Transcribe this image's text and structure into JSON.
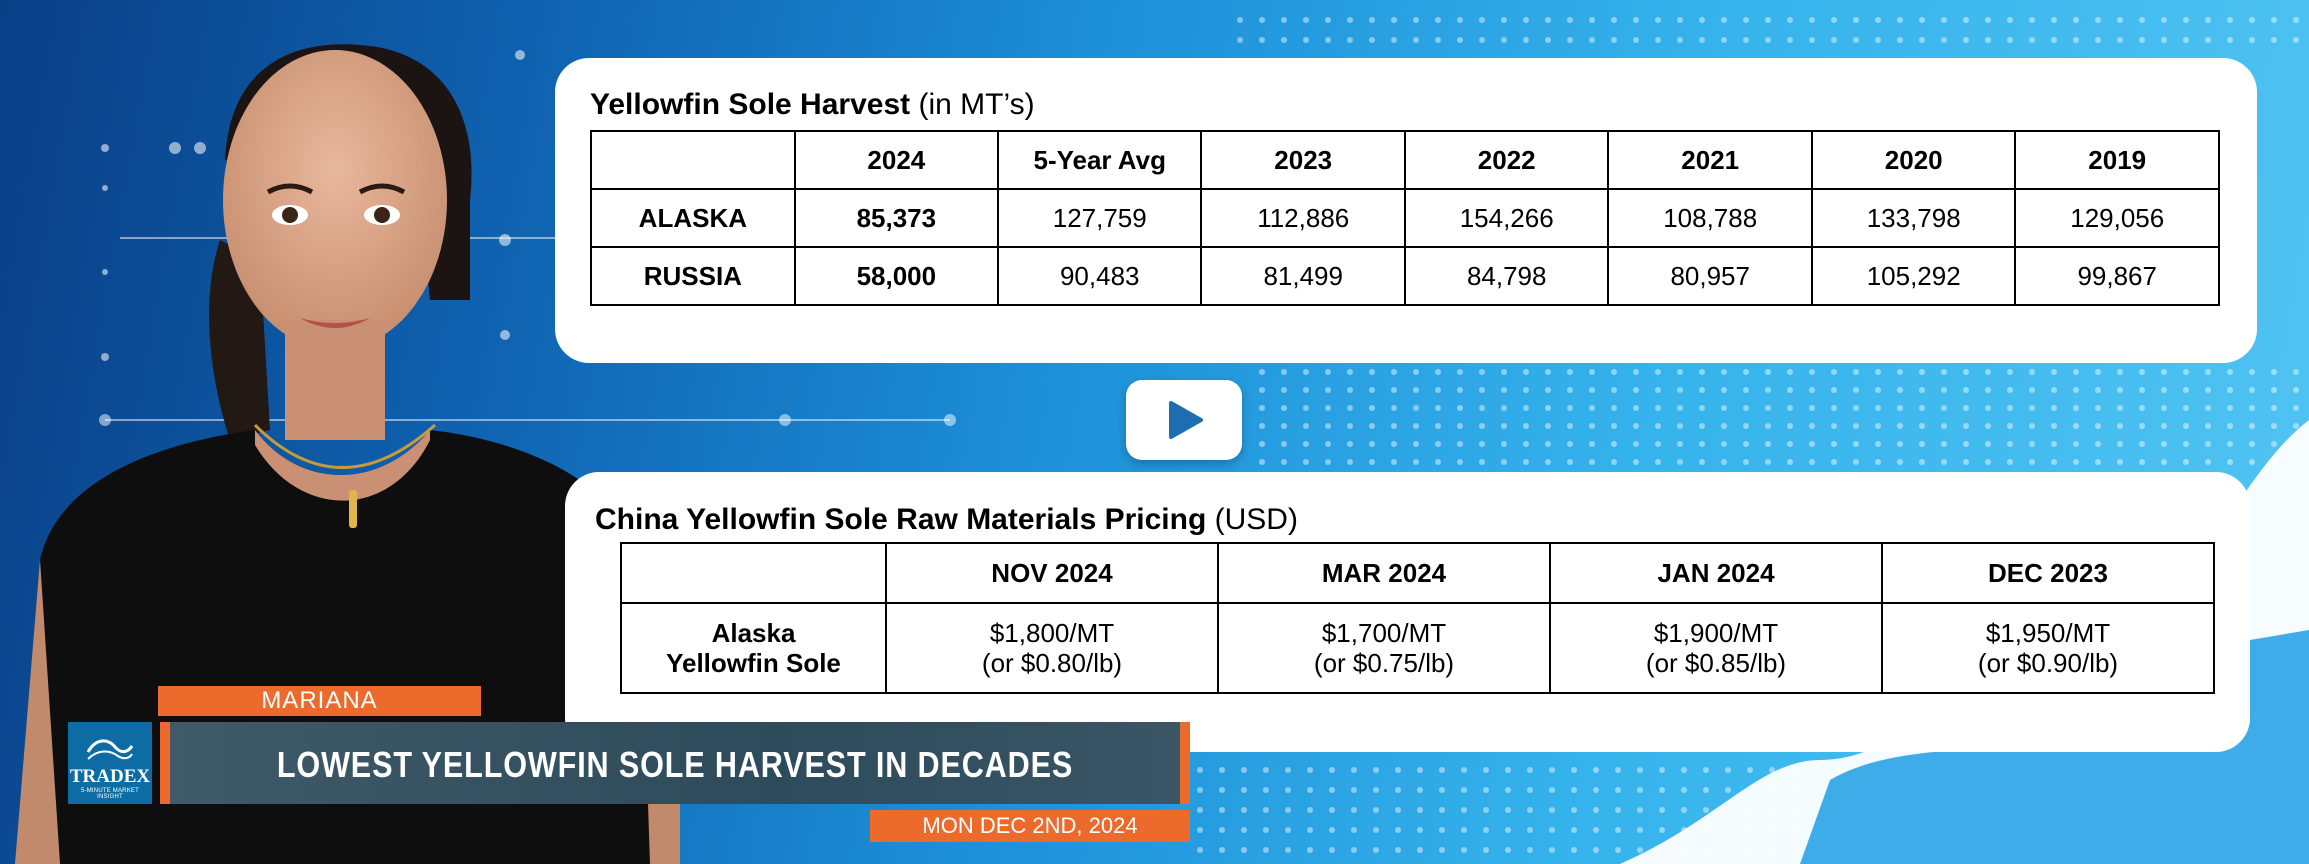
{
  "harvest_card": {
    "title_bold": "Yellowfin Sole Harvest",
    "title_rest": " (in MT’s)",
    "headers": [
      "",
      "2024",
      "5-Year Avg",
      "2023",
      "2022",
      "2021",
      "2020",
      "2019"
    ],
    "rows": [
      [
        "ALASKA",
        "85,373",
        "127,759",
        "112,886",
        "154,266",
        "108,788",
        "133,798",
        "129,056"
      ],
      [
        "RUSSIA",
        "58,000",
        "90,483",
        "81,499",
        "84,798",
        "80,957",
        "105,292",
        "99,867"
      ]
    ]
  },
  "pricing_card": {
    "title_bold": "China Yellowfin Sole Raw Materials Pricing",
    "title_rest": " (USD)",
    "headers": [
      "",
      "NOV 2024",
      "MAR 2024",
      "JAN 2024",
      "DEC 2023"
    ],
    "row_label_line1": "Alaska",
    "row_label_line2": "Yellowfin Sole",
    "prices": [
      {
        "mt": "$1,800/MT",
        "lb": "(or $0.80/lb)"
      },
      {
        "mt": "$1,700/MT",
        "lb": "(or $0.75/lb)"
      },
      {
        "mt": "$1,900/MT",
        "lb": "(or $0.85/lb)"
      },
      {
        "mt": "$1,950/MT",
        "lb": "(or $0.90/lb)"
      }
    ]
  },
  "lower_third": {
    "presenter_name": "MARIANA",
    "headline": "LOWEST YELLOWFIN SOLE HARVEST IN DECADES",
    "date": "MON DEC 2ND, 2024",
    "logo_text": "TRADEX",
    "logo_subtext": "5-MINUTE MARKET INSIGHT"
  },
  "colors": {
    "accent_orange": "#ec6a2c",
    "bar_slate": "#2e4b5b",
    "play_icon": "#1d6fb0"
  }
}
